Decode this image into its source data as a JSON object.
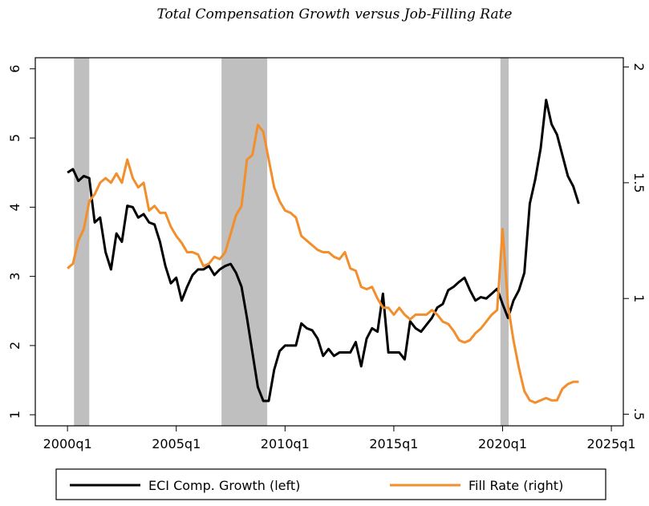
{
  "chart_data": {
    "type": "line",
    "title": "Total Compensation Growth versus Job-Filling Rate",
    "x": [
      2000,
      2000.25,
      2000.5,
      2000.75,
      2001,
      2001.25,
      2001.5,
      2001.75,
      2002,
      2002.25,
      2002.5,
      2002.75,
      2003,
      2003.25,
      2003.5,
      2003.75,
      2004,
      2004.25,
      2004.5,
      2004.75,
      2005,
      2005.25,
      2005.5,
      2005.75,
      2006,
      2006.25,
      2006.5,
      2006.75,
      2007,
      2007.25,
      2007.5,
      2007.75,
      2008,
      2008.25,
      2008.5,
      2008.75,
      2009,
      2009.25,
      2009.5,
      2009.75,
      2010,
      2010.25,
      2010.5,
      2010.75,
      2011,
      2011.25,
      2011.5,
      2011.75,
      2012,
      2012.25,
      2012.5,
      2012.75,
      2013,
      2013.25,
      2013.5,
      2013.75,
      2014,
      2014.25,
      2014.5,
      2014.75,
      2015,
      2015.25,
      2015.5,
      2015.75,
      2016,
      2016.25,
      2016.5,
      2016.75,
      2017,
      2017.25,
      2017.5,
      2017.75,
      2018,
      2018.25,
      2018.5,
      2018.75,
      2019,
      2019.25,
      2019.5,
      2019.75,
      2020,
      2020.25,
      2020.5,
      2020.75,
      2021,
      2021.25,
      2021.5,
      2021.75,
      2022,
      2022.25,
      2022.5,
      2022.75,
      2023,
      2023.25,
      2023.5
    ],
    "series": [
      {
        "name": "ECI Comp. Growth (left)",
        "color": "#000000",
        "axis": "y",
        "values": [
          4.5,
          4.55,
          4.38,
          4.45,
          4.42,
          3.78,
          3.85,
          3.35,
          3.1,
          3.62,
          3.5,
          4.02,
          4.0,
          3.85,
          3.9,
          3.78,
          3.75,
          3.5,
          3.15,
          2.9,
          2.98,
          2.65,
          2.85,
          3.02,
          3.1,
          3.1,
          3.15,
          3.02,
          3.1,
          3.15,
          3.18,
          3.05,
          2.85,
          2.4,
          1.9,
          1.4,
          1.2,
          1.2,
          1.65,
          1.92,
          2.0,
          2.0,
          2.0,
          2.32,
          2.25,
          2.22,
          2.1,
          1.85,
          1.95,
          1.85,
          1.9,
          1.9,
          1.9,
          2.05,
          1.7,
          2.1,
          2.25,
          2.2,
          2.75,
          1.9,
          1.9,
          1.9,
          1.8,
          2.35,
          2.25,
          2.2,
          2.3,
          2.4,
          2.55,
          2.6,
          2.8,
          2.85,
          2.92,
          2.98,
          2.8,
          2.65,
          2.7,
          2.68,
          2.75,
          2.82,
          2.6,
          2.4,
          2.65,
          2.8,
          3.05,
          4.05,
          4.4,
          4.85,
          5.55,
          5.2,
          5.05,
          4.75,
          4.45,
          4.3,
          4.05
        ]
      },
      {
        "name": "Fill Rate (right)",
        "color": "#f28e2b",
        "axis": "y2",
        "values": [
          1.13,
          1.15,
          1.25,
          1.3,
          1.42,
          1.45,
          1.5,
          1.52,
          1.5,
          1.54,
          1.5,
          1.6,
          1.52,
          1.48,
          1.5,
          1.38,
          1.4,
          1.37,
          1.37,
          1.31,
          1.27,
          1.24,
          1.2,
          1.2,
          1.19,
          1.14,
          1.15,
          1.18,
          1.17,
          1.2,
          1.28,
          1.36,
          1.4,
          1.6,
          1.62,
          1.75,
          1.72,
          1.6,
          1.48,
          1.42,
          1.38,
          1.37,
          1.35,
          1.27,
          1.25,
          1.23,
          1.21,
          1.2,
          1.2,
          1.18,
          1.17,
          1.2,
          1.13,
          1.12,
          1.05,
          1.04,
          1.05,
          1.0,
          0.96,
          0.96,
          0.93,
          0.96,
          0.93,
          0.91,
          0.93,
          0.93,
          0.93,
          0.95,
          0.93,
          0.9,
          0.89,
          0.86,
          0.82,
          0.81,
          0.82,
          0.85,
          0.87,
          0.9,
          0.93,
          0.95,
          1.3,
          0.97,
          0.82,
          0.7,
          0.6,
          0.56,
          0.55,
          0.56,
          0.57,
          0.56,
          0.56,
          0.61,
          0.63,
          0.64,
          0.64
        ]
      }
    ],
    "shaded_regions": [
      [
        2000.3,
        2001.0
      ],
      [
        2007.08,
        2009.18
      ],
      [
        2019.9,
        2020.28
      ]
    ],
    "shade_color": "#bfbfbf",
    "xlim": [
      1998.52,
      2025.55
    ],
    "xticks": [
      {
        "value": 2000,
        "label": "2000q1"
      },
      {
        "value": 2005,
        "label": "2005q1"
      },
      {
        "value": 2010,
        "label": "2010q1"
      },
      {
        "value": 2015,
        "label": "2015q1"
      },
      {
        "value": 2020,
        "label": "2020q1"
      },
      {
        "value": 2025,
        "label": "2025q1"
      }
    ],
    "ylim": [
      0.84,
      6.16
    ],
    "yticks": [
      1,
      2,
      3,
      4,
      5,
      6
    ],
    "y2lim": [
      0.45,
      2.04
    ],
    "y2ticks": [
      {
        "value": 0.5,
        "label": ".5"
      },
      1,
      1.5,
      2
    ],
    "legend": "bottom"
  }
}
